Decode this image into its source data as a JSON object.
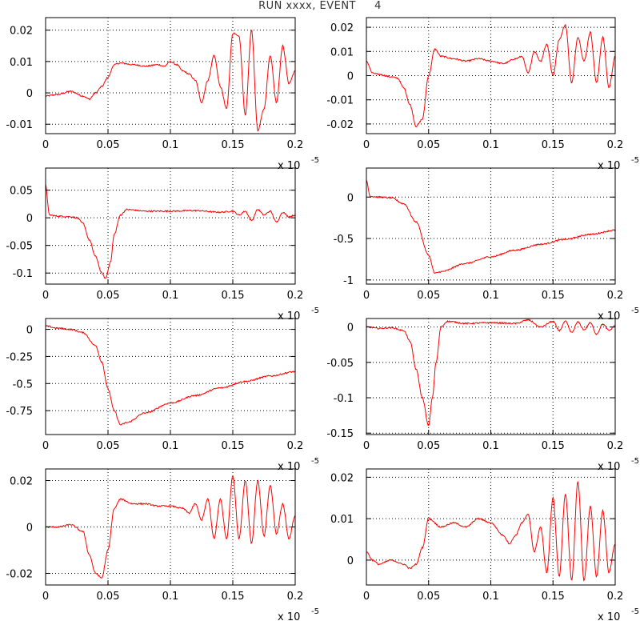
{
  "title": "RUN xxxx, EVENT     4",
  "colors": {
    "trace": "#ff0000",
    "frame": "#000000",
    "grid": "#000000"
  },
  "x_axis": {
    "range": [
      0,
      0.2
    ],
    "ticks": [
      0,
      0.05,
      0.1,
      0.15,
      0.2
    ],
    "tick_labels": [
      "0",
      "0.05",
      "0.1",
      "0.15",
      "0.2"
    ],
    "factor_label": "x 10",
    "factor_exponent": "-5"
  },
  "chart_data": [
    {
      "type": "line",
      "title": "",
      "xlabel": "",
      "ylabel": "",
      "grid": true,
      "xlim": [
        0,
        0.2
      ],
      "ylim": [
        -0.013,
        0.024
      ],
      "yticks": [
        -0.01,
        0,
        0.01,
        0.02
      ],
      "ytick_labels": [
        "-0.01",
        "0",
        "0.01",
        "0.02"
      ],
      "series": [
        {
          "points": [
            [
              0,
              -0.001
            ],
            [
              0.01,
              -0.0005
            ],
            [
              0.02,
              0.0005
            ],
            [
              0.03,
              -0.001
            ],
            [
              0.035,
              -0.002
            ],
            [
              0.04,
              0
            ],
            [
              0.045,
              0.002
            ],
            [
              0.05,
              0.005
            ],
            [
              0.055,
              0.009
            ],
            [
              0.06,
              0.0095
            ],
            [
              0.07,
              0.009
            ],
            [
              0.08,
              0.0085
            ],
            [
              0.09,
              0.009
            ],
            [
              0.095,
              0.0085
            ],
            [
              0.1,
              0.01
            ],
            [
              0.105,
              0.009
            ],
            [
              0.11,
              0.007
            ],
            [
              0.115,
              0.006
            ],
            [
              0.12,
              0.004
            ],
            [
              0.125,
              -0.003
            ],
            [
              0.13,
              0.004
            ],
            [
              0.135,
              0.012
            ],
            [
              0.14,
              0.002
            ],
            [
              0.145,
              -0.005
            ],
            [
              0.15,
              0.019
            ],
            [
              0.155,
              0.018
            ],
            [
              0.16,
              -0.007
            ],
            [
              0.165,
              0.02
            ],
            [
              0.17,
              -0.012
            ],
            [
              0.175,
              -0.005
            ],
            [
              0.18,
              0.012
            ],
            [
              0.185,
              -0.003
            ],
            [
              0.19,
              0.015
            ],
            [
              0.195,
              0.003
            ],
            [
              0.2,
              0.007
            ]
          ]
        }
      ]
    },
    {
      "type": "line",
      "title": "",
      "xlabel": "",
      "ylabel": "",
      "grid": true,
      "xlim": [
        0,
        0.2
      ],
      "ylim": [
        -0.024,
        0.024
      ],
      "yticks": [
        -0.02,
        -0.01,
        0,
        0.01,
        0.02
      ],
      "ytick_labels": [
        "-0.02",
        "-0.01",
        "0",
        "0.01",
        "0.02"
      ],
      "series": [
        {
          "points": [
            [
              0,
              0.006
            ],
            [
              0.005,
              0.001
            ],
            [
              0.01,
              0.0005
            ],
            [
              0.02,
              -0.0005
            ],
            [
              0.025,
              -0.001
            ],
            [
              0.03,
              -0.005
            ],
            [
              0.035,
              -0.012
            ],
            [
              0.04,
              -0.021
            ],
            [
              0.045,
              -0.018
            ],
            [
              0.05,
              0
            ],
            [
              0.055,
              0.011
            ],
            [
              0.06,
              0.008
            ],
            [
              0.07,
              0.007
            ],
            [
              0.08,
              0.006
            ],
            [
              0.09,
              0.007
            ],
            [
              0.1,
              0.006
            ],
            [
              0.11,
              0.005
            ],
            [
              0.12,
              0.007
            ],
            [
              0.125,
              0.008
            ],
            [
              0.13,
              0.001
            ],
            [
              0.135,
              0.01
            ],
            [
              0.14,
              0.006
            ],
            [
              0.145,
              0.013
            ],
            [
              0.15,
              0
            ],
            [
              0.155,
              0.015
            ],
            [
              0.16,
              0.021
            ],
            [
              0.165,
              -0.003
            ],
            [
              0.17,
              0.016
            ],
            [
              0.175,
              0.006
            ],
            [
              0.18,
              0.018
            ],
            [
              0.185,
              -0.003
            ],
            [
              0.19,
              0.016
            ],
            [
              0.195,
              -0.005
            ],
            [
              0.2,
              0.008
            ]
          ]
        }
      ]
    },
    {
      "type": "line",
      "title": "",
      "xlabel": "",
      "ylabel": "",
      "grid": true,
      "xlim": [
        0,
        0.2
      ],
      "ylim": [
        -0.12,
        0.09
      ],
      "yticks": [
        -0.1,
        -0.05,
        0,
        0.05
      ],
      "ytick_labels": [
        "-0.1",
        "-0.05",
        "0",
        "0.05"
      ],
      "series": [
        {
          "points": [
            [
              0,
              0.06
            ],
            [
              0.003,
              0.005
            ],
            [
              0.01,
              0.003
            ],
            [
              0.02,
              0.002
            ],
            [
              0.025,
              0
            ],
            [
              0.03,
              -0.01
            ],
            [
              0.035,
              -0.04
            ],
            [
              0.04,
              -0.07
            ],
            [
              0.045,
              -0.1
            ],
            [
              0.048,
              -0.11
            ],
            [
              0.052,
              -0.08
            ],
            [
              0.055,
              -0.03
            ],
            [
              0.06,
              0.005
            ],
            [
              0.065,
              0.015
            ],
            [
              0.08,
              0.012
            ],
            [
              0.1,
              0.012
            ],
            [
              0.12,
              0.013
            ],
            [
              0.14,
              0.01
            ],
            [
              0.15,
              0.012
            ],
            [
              0.155,
              0.005
            ],
            [
              0.16,
              0.012
            ],
            [
              0.165,
              -0.005
            ],
            [
              0.17,
              0.015
            ],
            [
              0.175,
              0.005
            ],
            [
              0.18,
              0.012
            ],
            [
              0.185,
              -0.008
            ],
            [
              0.19,
              0.01
            ],
            [
              0.195,
              0.002
            ],
            [
              0.2,
              0.005
            ]
          ]
        }
      ]
    },
    {
      "type": "line",
      "title": "",
      "xlabel": "",
      "ylabel": "",
      "grid": true,
      "xlim": [
        0,
        0.2
      ],
      "ylim": [
        -1.05,
        0.35
      ],
      "yticks": [
        -1,
        -0.5,
        0
      ],
      "ytick_labels": [
        "-1",
        "-0.5",
        "0"
      ],
      "series": [
        {
          "points": [
            [
              0,
              0.2
            ],
            [
              0.003,
              0.01
            ],
            [
              0.01,
              0
            ],
            [
              0.02,
              -0.01
            ],
            [
              0.03,
              -0.08
            ],
            [
              0.04,
              -0.3
            ],
            [
              0.05,
              -0.7
            ],
            [
              0.055,
              -0.92
            ],
            [
              0.06,
              -0.9
            ],
            [
              0.08,
              -0.8
            ],
            [
              0.1,
              -0.72
            ],
            [
              0.12,
              -0.64
            ],
            [
              0.14,
              -0.57
            ],
            [
              0.16,
              -0.51
            ],
            [
              0.18,
              -0.45
            ],
            [
              0.2,
              -0.4
            ]
          ]
        }
      ]
    },
    {
      "type": "line",
      "title": "",
      "xlabel": "",
      "ylabel": "",
      "grid": true,
      "xlim": [
        0,
        0.2
      ],
      "ylim": [
        -0.97,
        0.1
      ],
      "yticks": [
        -0.75,
        -0.5,
        -0.25,
        0
      ],
      "ytick_labels": [
        "-0.75",
        "-0.5",
        "-0.25",
        "0"
      ],
      "series": [
        {
          "points": [
            [
              0,
              0.03
            ],
            [
              0.01,
              0.01
            ],
            [
              0.02,
              0
            ],
            [
              0.03,
              -0.03
            ],
            [
              0.04,
              -0.15
            ],
            [
              0.045,
              -0.3
            ],
            [
              0.05,
              -0.55
            ],
            [
              0.055,
              -0.75
            ],
            [
              0.06,
              -0.88
            ],
            [
              0.065,
              -0.86
            ],
            [
              0.08,
              -0.77
            ],
            [
              0.1,
              -0.68
            ],
            [
              0.12,
              -0.61
            ],
            [
              0.14,
              -0.54
            ],
            [
              0.16,
              -0.48
            ],
            [
              0.18,
              -0.43
            ],
            [
              0.2,
              -0.39
            ]
          ]
        }
      ]
    },
    {
      "type": "line",
      "title": "",
      "xlabel": "",
      "ylabel": "",
      "grid": true,
      "xlim": [
        0,
        0.2
      ],
      "ylim": [
        -0.152,
        0.012
      ],
      "yticks": [
        -0.15,
        -0.1,
        -0.05,
        0
      ],
      "ytick_labels": [
        "-0.15",
        "-0.1",
        "-0.05",
        "0"
      ],
      "series": [
        {
          "points": [
            [
              0,
              0
            ],
            [
              0.01,
              -0.002
            ],
            [
              0.02,
              -0.001
            ],
            [
              0.03,
              -0.005
            ],
            [
              0.035,
              -0.02
            ],
            [
              0.04,
              -0.06
            ],
            [
              0.045,
              -0.1
            ],
            [
              0.05,
              -0.14
            ],
            [
              0.053,
              -0.1
            ],
            [
              0.056,
              -0.05
            ],
            [
              0.06,
              0
            ],
            [
              0.065,
              0.008
            ],
            [
              0.08,
              0.005
            ],
            [
              0.1,
              0.006
            ],
            [
              0.12,
              0.005
            ],
            [
              0.13,
              0.01
            ],
            [
              0.14,
              0
            ],
            [
              0.15,
              0.008
            ],
            [
              0.155,
              -0.005
            ],
            [
              0.16,
              0.008
            ],
            [
              0.165,
              -0.008
            ],
            [
              0.17,
              0.007
            ],
            [
              0.175,
              -0.004
            ],
            [
              0.18,
              0.006
            ],
            [
              0.185,
              -0.01
            ],
            [
              0.19,
              0.004
            ],
            [
              0.195,
              -0.005
            ],
            [
              0.2,
              0.002
            ]
          ]
        }
      ]
    },
    {
      "type": "line",
      "title": "",
      "xlabel": "",
      "ylabel": "",
      "grid": true,
      "xlim": [
        0,
        0.2
      ],
      "ylim": [
        -0.025,
        0.025
      ],
      "yticks": [
        -0.02,
        0,
        0.02
      ],
      "ytick_labels": [
        "-0.02",
        "0",
        "0.02"
      ],
      "series": [
        {
          "points": [
            [
              0,
              0
            ],
            [
              0.01,
              0
            ],
            [
              0.02,
              0.001
            ],
            [
              0.03,
              -0.002
            ],
            [
              0.035,
              -0.012
            ],
            [
              0.04,
              -0.02
            ],
            [
              0.045,
              -0.022
            ],
            [
              0.05,
              -0.01
            ],
            [
              0.055,
              0.008
            ],
            [
              0.06,
              0.012
            ],
            [
              0.07,
              0.01
            ],
            [
              0.08,
              0.01
            ],
            [
              0.09,
              0.009
            ],
            [
              0.1,
              0.009
            ],
            [
              0.11,
              0.008
            ],
            [
              0.115,
              0.006
            ],
            [
              0.12,
              0.01
            ],
            [
              0.125,
              0.003
            ],
            [
              0.13,
              0.012
            ],
            [
              0.135,
              -0.005
            ],
            [
              0.14,
              0.012
            ],
            [
              0.145,
              -0.005
            ],
            [
              0.15,
              0.022
            ],
            [
              0.155,
              -0.005
            ],
            [
              0.16,
              0.02
            ],
            [
              0.165,
              -0.007
            ],
            [
              0.17,
              0.02
            ],
            [
              0.175,
              -0.004
            ],
            [
              0.18,
              0.018
            ],
            [
              0.185,
              -0.003
            ],
            [
              0.19,
              0.01
            ],
            [
              0.195,
              -0.005
            ],
            [
              0.2,
              0.005
            ]
          ]
        }
      ]
    },
    {
      "type": "line",
      "title": "",
      "xlabel": "",
      "ylabel": "",
      "grid": true,
      "xlim": [
        0,
        0.2
      ],
      "ylim": [
        -0.006,
        0.022
      ],
      "yticks": [
        0,
        0.01,
        0.02
      ],
      "ytick_labels": [
        "0",
        "0.01",
        "0.02"
      ],
      "series": [
        {
          "points": [
            [
              0,
              0.002
            ],
            [
              0.005,
              0
            ],
            [
              0.01,
              -0.001
            ],
            [
              0.02,
              0
            ],
            [
              0.03,
              -0.001
            ],
            [
              0.035,
              -0.002
            ],
            [
              0.04,
              -0.001
            ],
            [
              0.045,
              0.003
            ],
            [
              0.05,
              0.01
            ],
            [
              0.06,
              0.008
            ],
            [
              0.07,
              0.009
            ],
            [
              0.08,
              0.008
            ],
            [
              0.09,
              0.01
            ],
            [
              0.1,
              0.009
            ],
            [
              0.11,
              0.006
            ],
            [
              0.115,
              0.004
            ],
            [
              0.12,
              0.006
            ],
            [
              0.125,
              0.009
            ],
            [
              0.13,
              0.011
            ],
            [
              0.135,
              0.002
            ],
            [
              0.14,
              0.008
            ],
            [
              0.145,
              -0.003
            ],
            [
              0.15,
              0.015
            ],
            [
              0.155,
              -0.004
            ],
            [
              0.16,
              0.016
            ],
            [
              0.165,
              -0.005
            ],
            [
              0.17,
              0.019
            ],
            [
              0.175,
              -0.005
            ],
            [
              0.18,
              0.013
            ],
            [
              0.185,
              -0.004
            ],
            [
              0.19,
              0.012
            ],
            [
              0.195,
              -0.003
            ],
            [
              0.2,
              0.004
            ]
          ]
        }
      ]
    }
  ]
}
